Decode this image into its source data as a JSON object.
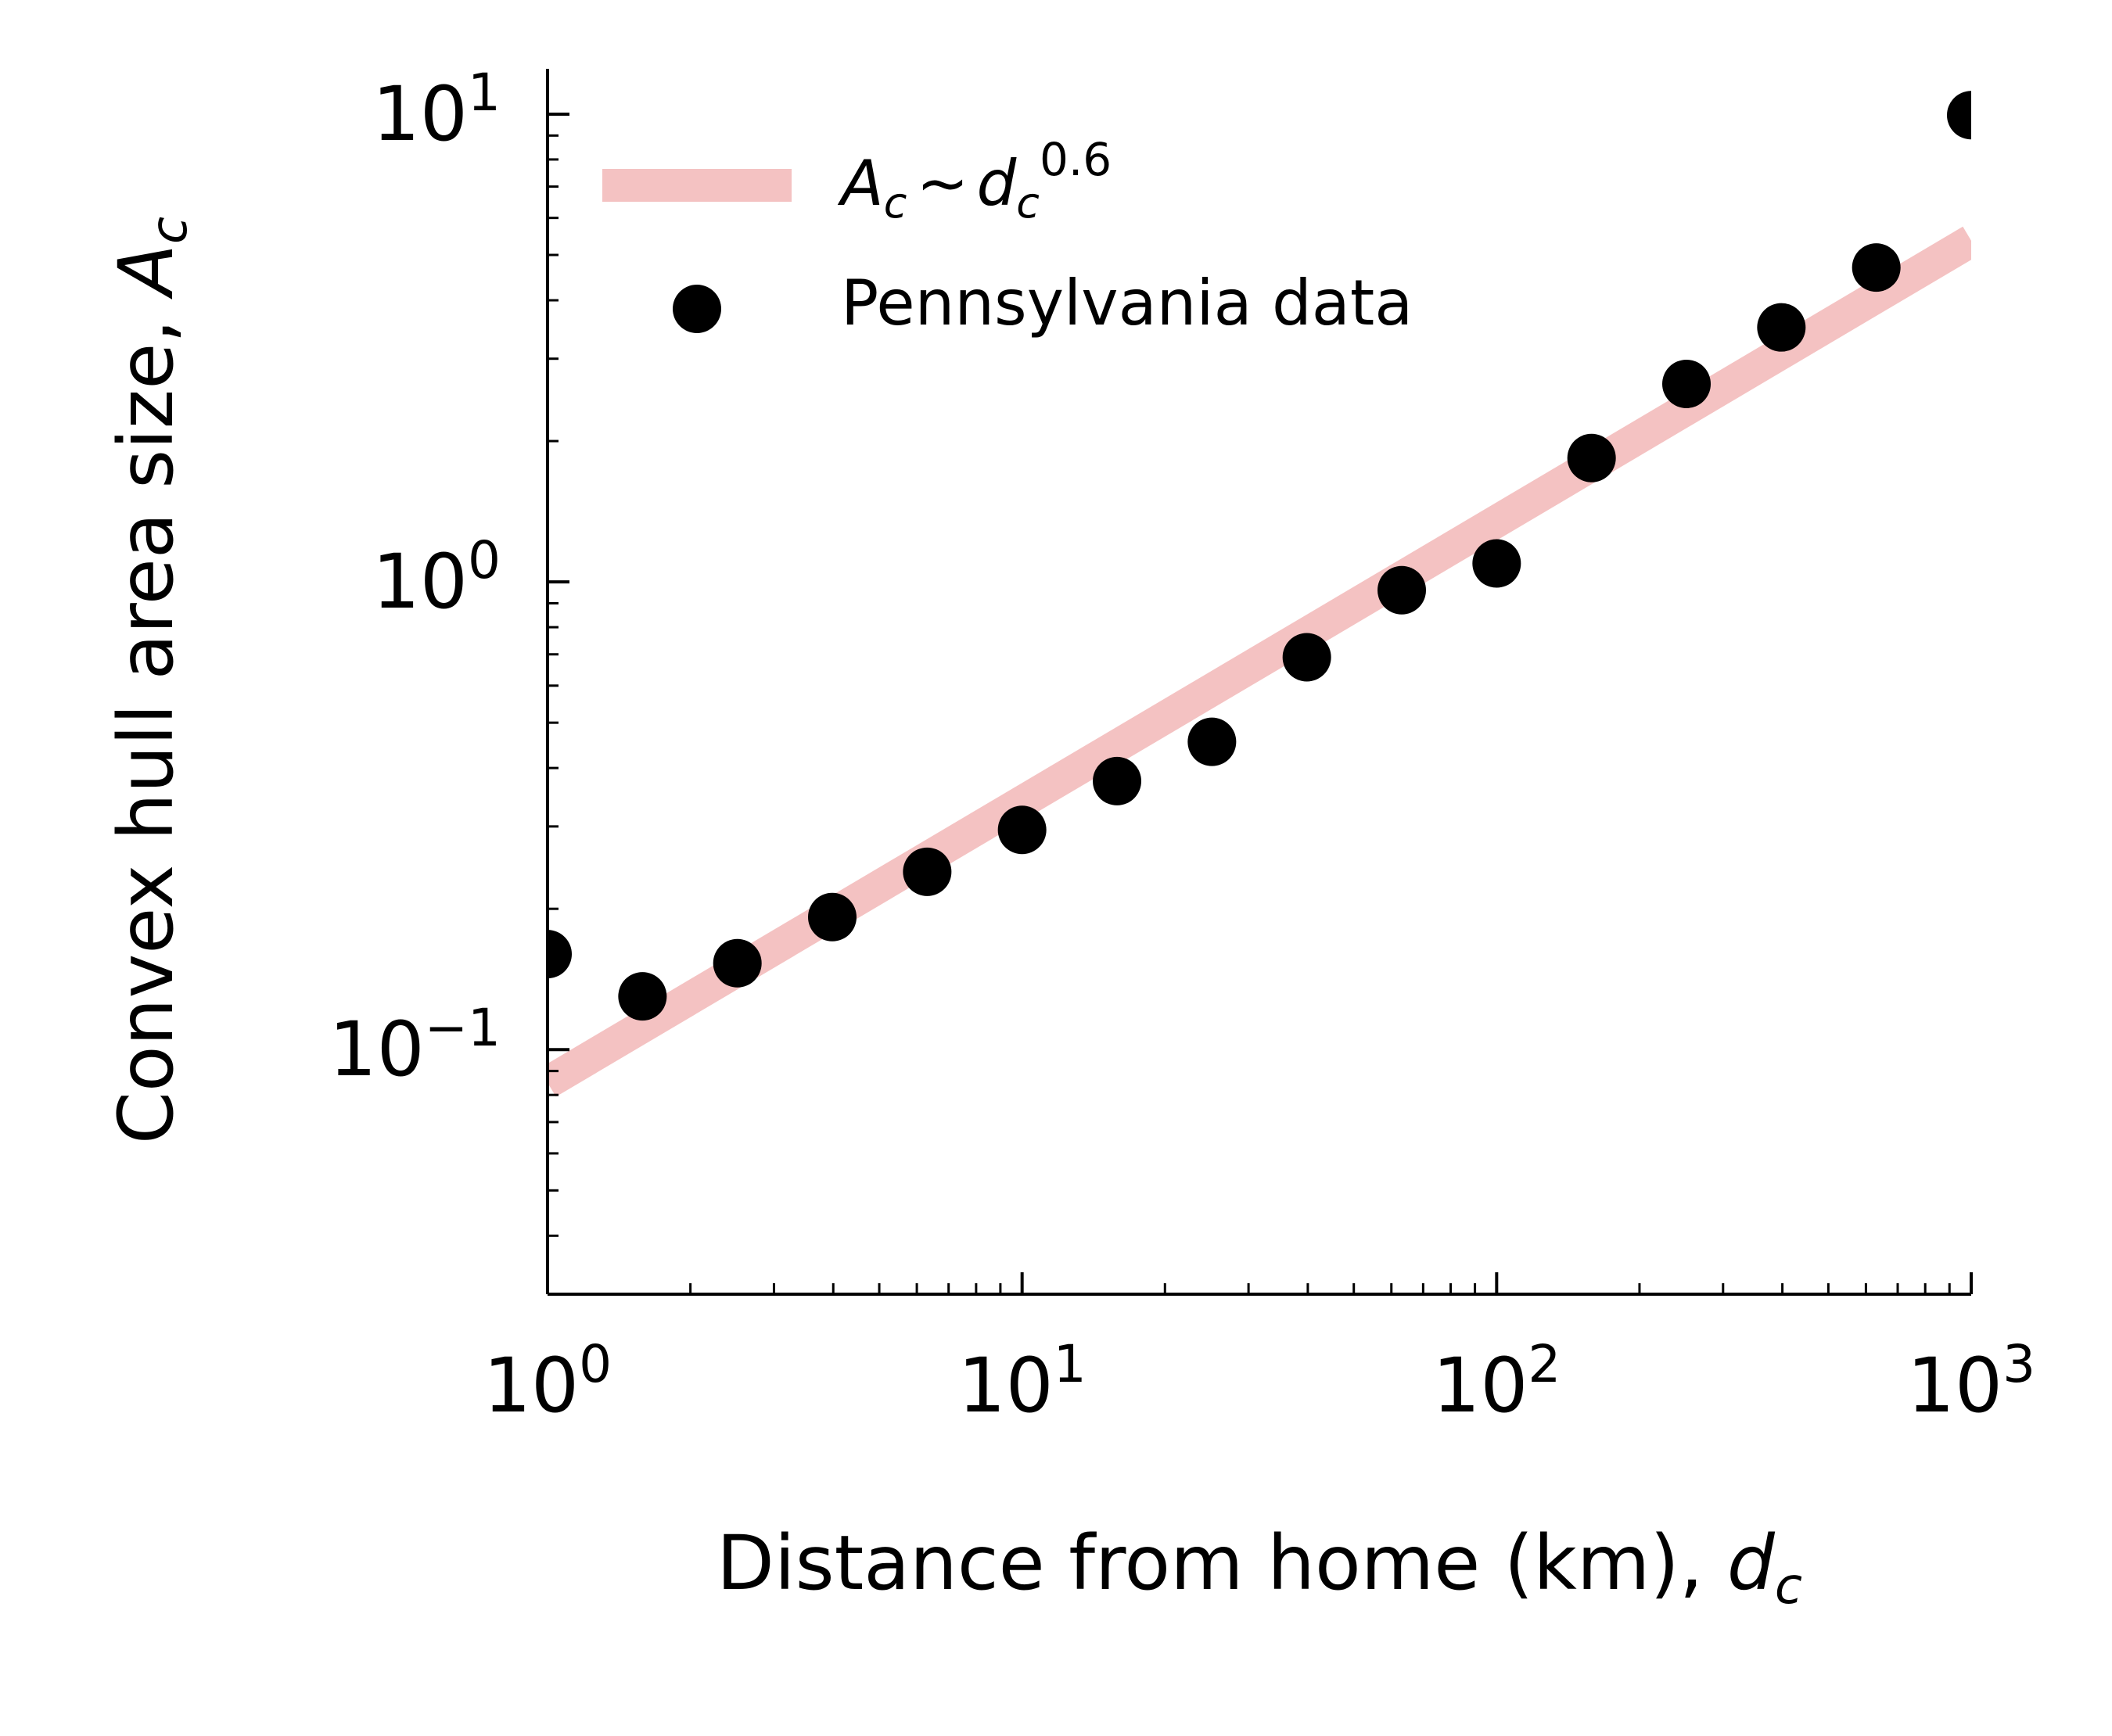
{
  "chart_data": {
    "type": "scatter",
    "xscale": "log",
    "yscale": "log",
    "xlim": [
      1,
      1000
    ],
    "ylim": [
      0.03,
      12.5
    ],
    "xlabel": {
      "text": "Distance from home (km), ",
      "var": "d",
      "sub": "c"
    },
    "ylabel": {
      "text": "Convex hull area size, ",
      "var": "A",
      "sub": "c"
    },
    "xticks": [
      {
        "value": 1,
        "base": "10",
        "exp": "0"
      },
      {
        "value": 10,
        "base": "10",
        "exp": "1"
      },
      {
        "value": 100,
        "base": "10",
        "exp": "2"
      },
      {
        "value": 1000,
        "base": "10",
        "exp": "3"
      }
    ],
    "yticks": [
      {
        "value": 0.1,
        "base": "10",
        "exp": "−1"
      },
      {
        "value": 1,
        "base": "10",
        "exp": "0"
      },
      {
        "value": 10,
        "base": "10",
        "exp": "1"
      }
    ],
    "series": [
      {
        "name": "Pennsylvania data",
        "kind": "scatter",
        "color": "#000000",
        "x": [
          1.0,
          1.585,
          2.512,
          3.981,
          6.31,
          10.0,
          15.85,
          25.12,
          39.81,
          63.1,
          100.0,
          158.5,
          251.2,
          398.1,
          631.0,
          1000.0
        ],
        "y": [
          0.16,
          0.13,
          0.153,
          0.192,
          0.24,
          0.295,
          0.375,
          0.455,
          0.69,
          0.96,
          1.095,
          1.84,
          2.65,
          3.5,
          4.7,
          9.95
        ]
      },
      {
        "name": "fit",
        "kind": "line",
        "color": "#f4c2c2",
        "exponent": 0.6,
        "coefficient": 0.085,
        "x": [
          1,
          1000
        ],
        "label_var_a": "A",
        "label_sub_a": "c",
        "label_tilde": "~",
        "label_var_b": "d",
        "label_sub_b": "c",
        "label_exp": "0.6"
      }
    ],
    "legend_position": "top-left"
  }
}
